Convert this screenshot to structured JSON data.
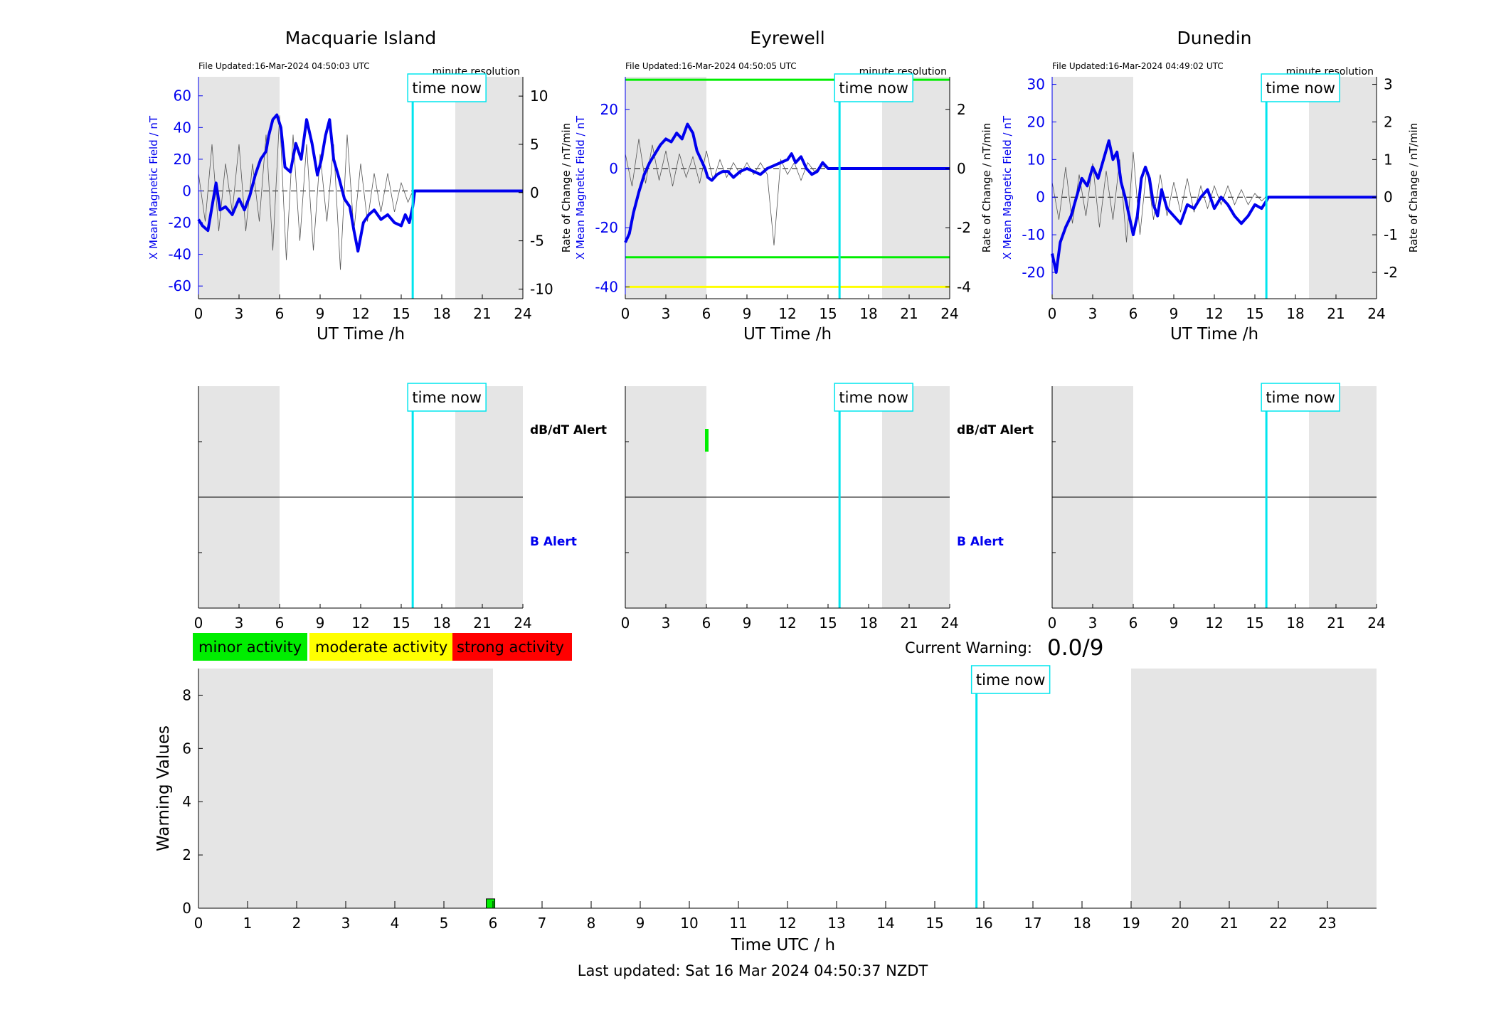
{
  "figure": {
    "time_now_label": "time now",
    "footer_last_updated": "Last updated: Sat 16 Mar 2024 04:50:37 NZDT",
    "current_warning_label": "Current Warning:",
    "current_warning_value": "0.0/9",
    "colors": {
      "field": "#0000ee",
      "rate": "#555555",
      "time_now": "#00e5ee",
      "night_shade": "#e5e5e5",
      "minor": "#00ee00",
      "moderate": "#ffff00",
      "strong": "#ff0000"
    }
  },
  "legend": {
    "minor": "minor activity",
    "moderate": "moderate activity",
    "strong": "strong activity"
  },
  "alert_labels": {
    "dbdt": "dB/dT Alert",
    "b": "B Alert"
  },
  "chart_data": [
    {
      "id": "macquarie",
      "type": "line",
      "title": "Macquarie Island",
      "file_updated": "File Updated:16-Mar-2024 04:50:03 UTC",
      "resolution": "minute resolution",
      "xlabel": "UT Time /h",
      "ylabel_left": "X Mean Magnetic Field / nT",
      "ylabel_right": "",
      "xlim": [
        0,
        24
      ],
      "xticks": [
        0,
        3,
        6,
        9,
        12,
        15,
        18,
        21,
        24
      ],
      "ylim_left": [
        -68,
        72
      ],
      "yticks_left": [
        -60,
        -40,
        -20,
        0,
        20,
        40,
        60
      ],
      "ylim_right": [
        -11,
        12
      ],
      "yticks_right": [
        -10,
        -5,
        0,
        5,
        10
      ],
      "night_bands": [
        [
          0,
          6
        ],
        [
          19,
          24
        ]
      ],
      "time_now": 15.85,
      "field_x": [
        0,
        0.3,
        0.7,
        1.0,
        1.3,
        1.6,
        2.0,
        2.5,
        3.0,
        3.4,
        3.8,
        4.2,
        4.6,
        5.0,
        5.2,
        5.5,
        5.8,
        6.1,
        6.4,
        6.8,
        7.2,
        7.6,
        8.0,
        8.4,
        8.8,
        9.1,
        9.4,
        9.7,
        10.0,
        10.4,
        10.8,
        11.2,
        11.5,
        11.8,
        12.2,
        12.6,
        13.0,
        13.5,
        14.0,
        14.5,
        15.0,
        15.3,
        15.6,
        15.85,
        16.0,
        24.0
      ],
      "field_y": [
        -18,
        -22,
        -25,
        -10,
        5,
        -12,
        -10,
        -15,
        -5,
        -12,
        -3,
        10,
        20,
        25,
        35,
        45,
        48,
        40,
        15,
        12,
        30,
        20,
        45,
        30,
        10,
        20,
        35,
        45,
        20,
        8,
        -5,
        -10,
        -25,
        -38,
        -20,
        -15,
        -12,
        -18,
        -15,
        -20,
        -22,
        -15,
        -20,
        -10,
        0,
        0
      ],
      "rate_x": [
        0.0,
        0.5,
        1.0,
        1.5,
        2.0,
        2.5,
        3.0,
        3.5,
        4.0,
        4.5,
        5.0,
        5.5,
        6.0,
        6.5,
        7.0,
        7.5,
        8.0,
        8.5,
        9.0,
        9.5,
        10.0,
        10.5,
        11.0,
        11.5,
        12.0,
        12.5,
        13.0,
        13.5,
        14.0,
        14.5,
        15.0,
        15.5,
        15.8
      ],
      "rate_y": [
        2,
        -3,
        5,
        -4,
        3,
        -2,
        5,
        -4,
        3,
        -3,
        6,
        -6,
        8,
        -7,
        6,
        -5,
        5,
        -6,
        4,
        -3,
        5,
        -8,
        6,
        -4,
        3,
        -3,
        2,
        -2,
        2,
        -2,
        1,
        -1,
        0
      ]
    },
    {
      "id": "eyrewell",
      "type": "line",
      "title": "Eyrewell",
      "file_updated": "File Updated:16-Mar-2024 04:50:05 UTC",
      "resolution": "minute resolution",
      "xlabel": "UT Time /h",
      "ylabel_left": "X Mean Magnetic Field / nT",
      "ylabel_right": "Rate of Change / nT/min",
      "ylabel_right2": "Rate of Change / nT/min",
      "xlim": [
        0,
        24
      ],
      "xticks": [
        0,
        3,
        6,
        9,
        12,
        15,
        18,
        21,
        24
      ],
      "ylim_left": [
        -44,
        31
      ],
      "yticks_left": [
        -40,
        -20,
        0,
        20
      ],
      "ylim_right": [
        -4.4,
        3.1
      ],
      "yticks_right": [
        -4,
        -2,
        0,
        2
      ],
      "night_bands": [
        [
          0,
          6
        ],
        [
          19,
          24
        ]
      ],
      "time_now": 15.85,
      "thresholds": [
        {
          "value": 30,
          "color": "#00ee00"
        },
        {
          "value": -30,
          "color": "#00ee00"
        },
        {
          "value": -40,
          "color": "#ffff00"
        }
      ],
      "field_x": [
        0,
        0.3,
        0.6,
        1.0,
        1.4,
        1.8,
        2.2,
        2.6,
        3.0,
        3.4,
        3.8,
        4.2,
        4.6,
        5.0,
        5.3,
        5.6,
        5.9,
        6.1,
        6.4,
        6.8,
        7.2,
        7.6,
        8.0,
        8.5,
        9.0,
        9.5,
        10.0,
        10.5,
        11.0,
        11.5,
        12.0,
        12.3,
        12.6,
        13.0,
        13.4,
        13.8,
        14.2,
        14.6,
        15.0,
        15.85,
        16.0,
        24.0
      ],
      "field_y": [
        -25,
        -22,
        -15,
        -8,
        -2,
        2,
        5,
        8,
        10,
        9,
        12,
        10,
        15,
        12,
        6,
        3,
        0,
        -3,
        -4,
        -2,
        -1,
        -1,
        -3,
        -1,
        0,
        -1,
        -2,
        0,
        1,
        2,
        3,
        5,
        2,
        4,
        0,
        -2,
        -1,
        2,
        0,
        0,
        0,
        0
      ],
      "rate_x": [
        0.0,
        0.5,
        1.0,
        1.5,
        2.0,
        2.5,
        3.0,
        3.5,
        4.0,
        4.5,
        5.0,
        5.5,
        6.0,
        6.5,
        7.0,
        7.5,
        8.0,
        8.5,
        9.0,
        9.5,
        10.0,
        10.5,
        11.0,
        11.5,
        12.0,
        12.5,
        13.0,
        13.5,
        14.0,
        14.5,
        15.0
      ],
      "rate_y": [
        0.5,
        -0.6,
        1.0,
        -0.5,
        0.8,
        -0.4,
        0.6,
        -0.6,
        0.5,
        -0.3,
        0.4,
        -0.5,
        0.6,
        -0.4,
        0.3,
        -0.3,
        0.2,
        -0.2,
        0.2,
        -0.2,
        0.2,
        -0.2,
        -2.6,
        0.3,
        -0.2,
        0.2,
        -0.4,
        0.2,
        -0.1,
        0.1,
        0
      ]
    },
    {
      "id": "dunedin",
      "type": "line",
      "title": "Dunedin",
      "file_updated": "File Updated:16-Mar-2024 04:49:02 UTC",
      "resolution": "minute resolution",
      "xlabel": "UT Time /h",
      "ylabel_left": "X Mean Magnetic Field / nT",
      "ylabel_right": "Rate of Change / nT/min",
      "xlim": [
        0,
        24
      ],
      "xticks": [
        0,
        3,
        6,
        9,
        12,
        15,
        18,
        21,
        24
      ],
      "ylim_left": [
        -27,
        32
      ],
      "yticks_left": [
        -20,
        -10,
        0,
        10,
        20,
        30
      ],
      "ylim_right": [
        -2.7,
        3.2
      ],
      "yticks_right": [
        -2,
        -1,
        0,
        1,
        2,
        3
      ],
      "night_bands": [
        [
          0,
          6
        ],
        [
          19,
          24
        ]
      ],
      "time_now": 15.85,
      "field_x": [
        0,
        0.3,
        0.6,
        1.0,
        1.4,
        1.8,
        2.2,
        2.6,
        3.0,
        3.4,
        3.8,
        4.2,
        4.5,
        4.8,
        5.1,
        5.4,
        5.7,
        6.0,
        6.3,
        6.6,
        6.9,
        7.2,
        7.5,
        7.8,
        8.1,
        8.5,
        9.0,
        9.5,
        10.0,
        10.5,
        11.0,
        11.5,
        12.0,
        12.5,
        13.0,
        13.5,
        14.0,
        14.5,
        15.0,
        15.5,
        15.85,
        16.0,
        24.0
      ],
      "field_y": [
        -15,
        -20,
        -12,
        -8,
        -5,
        0,
        5,
        3,
        8,
        5,
        10,
        15,
        10,
        12,
        4,
        0,
        -5,
        -10,
        -5,
        5,
        8,
        5,
        -2,
        -5,
        2,
        -3,
        -5,
        -7,
        -2,
        -3,
        0,
        2,
        -3,
        0,
        -2,
        -5,
        -7,
        -5,
        -2,
        -3,
        -1,
        0,
        0
      ],
      "rate_x": [
        0.0,
        0.5,
        1.0,
        1.5,
        2.0,
        2.5,
        3.0,
        3.5,
        4.0,
        4.5,
        5.0,
        5.5,
        6.0,
        6.5,
        7.0,
        7.5,
        8.0,
        8.5,
        9.0,
        9.5,
        10.0,
        10.5,
        11.0,
        11.5,
        12.0,
        12.5,
        13.0,
        13.5,
        14.0,
        14.5,
        15.0,
        15.5,
        15.8
      ],
      "rate_y": [
        0.4,
        -0.6,
        0.8,
        -0.7,
        0.6,
        -0.5,
        0.9,
        -0.8,
        0.7,
        -0.6,
        1.0,
        -1.2,
        1.2,
        -1.0,
        0.8,
        -0.6,
        0.6,
        -0.5,
        0.4,
        -0.4,
        0.5,
        -0.4,
        0.3,
        -0.3,
        0.3,
        -0.2,
        0.3,
        -0.2,
        0.2,
        -0.2,
        0.1,
        -0.1,
        0
      ]
    },
    {
      "id": "alert-macquarie",
      "type": "bar",
      "xlim": [
        0,
        24
      ],
      "xticks": [
        0,
        3,
        6,
        9,
        12,
        15,
        18,
        21,
        24
      ],
      "night_bands": [
        [
          0,
          6
        ],
        [
          19,
          24
        ]
      ],
      "time_now": 15.85,
      "dbdt_alerts": [],
      "b_alerts": []
    },
    {
      "id": "alert-eyrewell",
      "type": "bar",
      "xlim": [
        0,
        24
      ],
      "xticks": [
        0,
        3,
        6,
        9,
        12,
        15,
        18,
        21,
        24
      ],
      "night_bands": [
        [
          0,
          6
        ],
        [
          19,
          24
        ]
      ],
      "time_now": 15.85,
      "dbdt_alerts": [
        {
          "t": 6.0,
          "level": "minor"
        }
      ],
      "b_alerts": []
    },
    {
      "id": "alert-dunedin",
      "type": "bar",
      "xlim": [
        0,
        24
      ],
      "xticks": [
        0,
        3,
        6,
        9,
        12,
        15,
        18,
        21,
        24
      ],
      "night_bands": [
        [
          0,
          6
        ],
        [
          19,
          24
        ]
      ],
      "time_now": 15.85,
      "dbdt_alerts": [],
      "b_alerts": []
    },
    {
      "id": "warning",
      "type": "bar",
      "xlabel": "Time UTC / h",
      "ylabel": "Warning Values",
      "xlim": [
        0,
        24
      ],
      "xticks": [
        0,
        1,
        2,
        3,
        4,
        5,
        6,
        7,
        8,
        9,
        10,
        11,
        12,
        13,
        14,
        15,
        16,
        17,
        18,
        19,
        20,
        21,
        22,
        23
      ],
      "ylim": [
        0,
        9
      ],
      "yticks": [
        0,
        2,
        4,
        6,
        8
      ],
      "night_bands": [
        [
          0,
          6
        ],
        [
          19,
          24
        ]
      ],
      "time_now": 15.85,
      "bars": [
        {
          "t": 5.95,
          "value": 0.35,
          "level": "minor"
        }
      ]
    }
  ]
}
